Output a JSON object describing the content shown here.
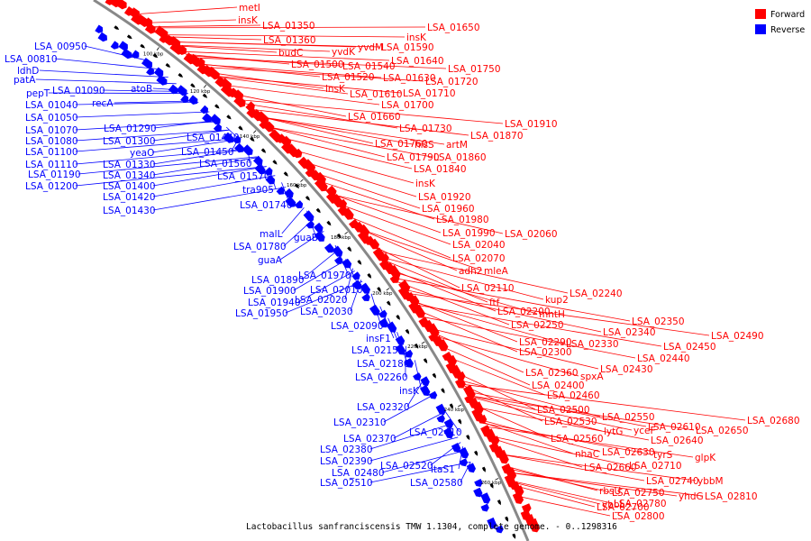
{
  "colors": {
    "forward": "#ff0000",
    "reverse": "#0000ff",
    "backbone": "#888888",
    "tick": "#000000"
  },
  "legend": {
    "forward_label": "Forward",
    "reverse_label": "Reverse"
  },
  "caption": "Lactobacillus sanfranciscensis TMW 1.1304, complete genome. - 0..1298316",
  "ticks": [
    "100 kbp",
    "120 kbp",
    "140 kbp",
    "160 kbp",
    "180 kbp",
    "200 kbp",
    "220 kbp",
    "240 kbp",
    "260 kbp"
  ],
  "forward_genes": [
    "metI",
    "insK",
    "LSA_01350",
    "LSA_01360",
    "budC",
    "LSA_01500",
    "yvdK",
    "yvdM",
    "LSA_01540",
    "LSA_01590",
    "insK",
    "LSA_01650",
    "LSA_01520",
    "insK",
    "LSA_01630",
    "LSA_01640",
    "LSA_01610",
    "LSA_01750",
    "LSA_01720",
    "LSA_01710",
    "LSA_01700",
    "LSA_01660",
    "LSA_01730",
    "LSA_01910",
    "LSA_01870",
    "LSA_01760",
    "hisS",
    "artM",
    "LSA_01790",
    "LSA_01860",
    "LSA_01840",
    "insK",
    "LSA_01920",
    "LSA_01960",
    "LSA_01980",
    "LSA_02060",
    "LSA_01990",
    "LSA_02040",
    "LSA_02070",
    "adh2",
    "mleA",
    "LSA_02110",
    "ftf",
    "kup2",
    "LSA_02240",
    "LSA_02200",
    "mntH",
    "LSA_02250",
    "LSA_02350",
    "LSA_02340",
    "LSA_02290",
    "LSA_02330",
    "LSA_02490",
    "LSA_02300",
    "LSA_02450",
    "LSA_02440",
    "LSA_02360",
    "spxA",
    "LSA_02430",
    "LSA_02400",
    "LSA_02460",
    "LSA_02500",
    "LSA_02680",
    "LSA_02550",
    "LSA_02530",
    "LSA_02610",
    "LSA_02650",
    "LSA_02560",
    "lytG",
    "yceF",
    "LSA_02640",
    "nhaC",
    "LSA_02630",
    "tyrS",
    "glpK",
    "LSA_02660",
    "LSA_02710",
    "LSA_02740",
    "ybbM",
    "rbsU",
    "LSA_02750",
    "yhdG",
    "LSA_02810",
    "LSA_02700",
    "ybbL",
    "LSA_02780",
    "LSA_02800"
  ],
  "reverse_genes": [
    "LSA_00950",
    "LSA_00810",
    "ldhD",
    "patA",
    "pepT",
    "LSA_01090",
    "LSA_01040",
    "recA",
    "atoB",
    "LSA_01050",
    "LSA_01070",
    "LSA_01080",
    "LSA_01100",
    "LSA_01110",
    "LSA_01190",
    "LSA_01200",
    "LSA_01290",
    "LSA_01300",
    "LSA_01440",
    "yeaO",
    "LSA_01450",
    "LSA_01330",
    "LSA_01340",
    "LSA_01560",
    "LSA_01570",
    "LSA_01400",
    "LSA_01420",
    "LSA_01430",
    "tra905",
    "LSA_01740",
    "malL",
    "guaB",
    "LSA_01780",
    "guaA",
    "LSA_01970",
    "LSA_01890",
    "LSA_02010",
    "LSA_01900",
    "LSA_01940",
    "LSA_02020",
    "LSA_01950",
    "LSA_02030",
    "LSA_02090",
    "insF1",
    "LSA_02150",
    "LSA_02180",
    "LSA_02260",
    "insK",
    "LSA_02320",
    "LSA_02310",
    "LSA_02410",
    "LSA_02370",
    "LSA_02380",
    "LSA_02390",
    "LSA_02520",
    "LSA_02480",
    "ltaS1",
    "LSA_02510",
    "LSA_02580"
  ]
}
